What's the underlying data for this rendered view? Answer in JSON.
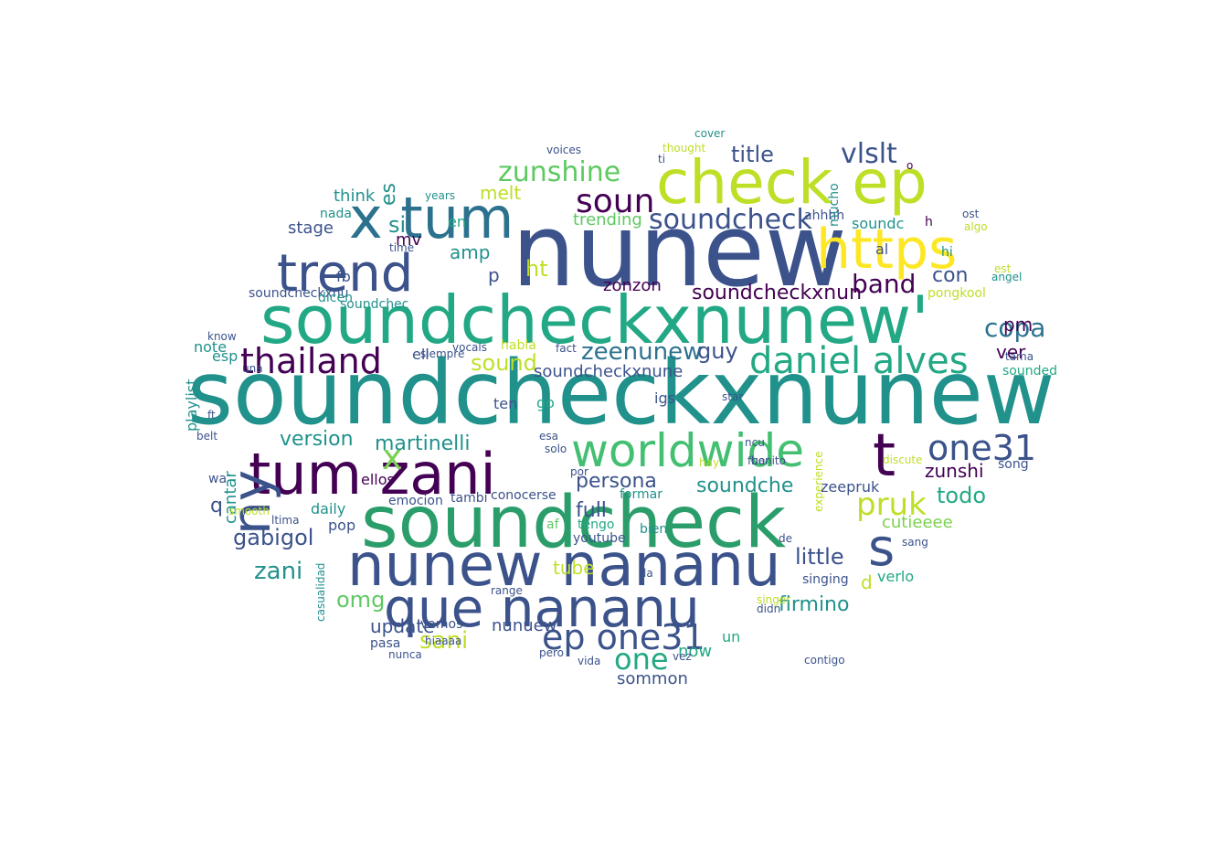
{
  "words": [
    {
      "text": "soundcheckxnunew",
      "color": "#21918c"
    },
    {
      "text": "soundcheckxnunew'",
      "color": "#22a884"
    },
    {
      "text": "nunew",
      "color": "#3b528b"
    },
    {
      "text": "soundcheck",
      "color": "#2a9d6a"
    },
    {
      "text": "tum zani",
      "color": "#440154"
    },
    {
      "text": "worldwide",
      "color": "#43bf71"
    },
    {
      "text": "check ep",
      "color": "#bddf26"
    },
    {
      "text": "https",
      "color": "#fde725"
    },
    {
      "text": "nunew nananu",
      "color": "#3b528b"
    },
    {
      "text": "que nananu",
      "color": "#3b528b"
    },
    {
      "text": "x tum",
      "color": "#2c728e"
    },
    {
      "text": "trend",
      "color": "#3b528b"
    },
    {
      "text": "thailand",
      "color": "#440154"
    },
    {
      "text": "daniel alves",
      "color": "#22a884"
    },
    {
      "text": "ep one31",
      "color": "#3b528b"
    },
    {
      "text": "one31",
      "color": "#3b528b"
    },
    {
      "text": "ny",
      "color": "#3b528b"
    },
    {
      "text": "t",
      "color": "#440154"
    },
    {
      "text": "s",
      "color": "#3b528b"
    },
    {
      "text": "x",
      "color": "#7ad151"
    },
    {
      "text": "soun",
      "color": "#440154"
    },
    {
      "text": "soundcheck",
      "color": "#3b528b"
    },
    {
      "text": "zunshine",
      "color": "#5ec962"
    },
    {
      "text": "vlslt",
      "color": "#3b528b"
    },
    {
      "text": "soundcheckxnun",
      "color": "#440154"
    },
    {
      "text": "pruk",
      "color": "#bddf26"
    },
    {
      "text": "band",
      "color": "#440154"
    },
    {
      "text": "title",
      "color": "#3b528b"
    },
    {
      "text": "zeenunew",
      "color": "#2c728e"
    },
    {
      "text": "copa",
      "color": "#2c728e"
    },
    {
      "text": "persona",
      "color": "#3b528b"
    },
    {
      "text": "soundche",
      "color": "#21918c"
    },
    {
      "text": "martinelli",
      "color": "#21918c"
    },
    {
      "text": "version",
      "color": "#21918c"
    },
    {
      "text": "gabigol",
      "color": "#3b528b"
    },
    {
      "text": "zani",
      "color": "#21918c"
    },
    {
      "text": "omg",
      "color": "#5ec962"
    },
    {
      "text": "sani",
      "color": "#bddf26"
    },
    {
      "text": "one",
      "color": "#22a884"
    },
    {
      "text": "firmino",
      "color": "#21918c"
    },
    {
      "text": "little",
      "color": "#3b528b"
    },
    {
      "text": "zunshi",
      "color": "#440154"
    },
    {
      "text": "todo",
      "color": "#22a884"
    },
    {
      "text": "amp",
      "color": "#21918c"
    },
    {
      "text": "si",
      "color": "#21918c"
    },
    {
      "text": "melt",
      "color": "#bddf26"
    },
    {
      "text": "ht",
      "color": "#bddf26"
    },
    {
      "text": "sound",
      "color": "#bddf26"
    },
    {
      "text": "trending",
      "color": "#5ec962"
    },
    {
      "text": "soundcheckxnune",
      "color": "#3b528b"
    },
    {
      "text": "zonzon",
      "color": "#440154"
    },
    {
      "text": "guy",
      "color": "#3b528b"
    },
    {
      "text": "ver",
      "color": "#440154"
    },
    {
      "text": "pm",
      "color": "#440154"
    },
    {
      "text": "con",
      "color": "#3b528b"
    },
    {
      "text": "full",
      "color": "#3b528b"
    },
    {
      "text": "cutieeee",
      "color": "#7ad151"
    },
    {
      "text": "tube",
      "color": "#bddf26"
    },
    {
      "text": "update",
      "color": "#3b528b"
    },
    {
      "text": "nunuew",
      "color": "#3b528b"
    },
    {
      "text": "now",
      "color": "#22a884"
    },
    {
      "text": "sommon",
      "color": "#3b528b"
    },
    {
      "text": "stage",
      "color": "#3b528b"
    },
    {
      "text": "think",
      "color": "#21918c"
    },
    {
      "text": "es",
      "color": "#21918c"
    },
    {
      "text": "mv",
      "color": "#440154"
    },
    {
      "text": "fb",
      "color": "#3b528b"
    },
    {
      "text": "cantar",
      "color": "#21918c"
    },
    {
      "text": "playlist",
      "color": "#21918c"
    },
    {
      "text": "esp",
      "color": "#21918c"
    },
    {
      "text": "note",
      "color": "#21918c"
    },
    {
      "text": "daily",
      "color": "#21918c"
    },
    {
      "text": "ellos",
      "color": "#440154"
    },
    {
      "text": "pop",
      "color": "#3b528b"
    },
    {
      "text": "emocion",
      "color": "#3b528b"
    },
    {
      "text": "tambi",
      "color": "#3b528b"
    },
    {
      "text": "conocerse",
      "color": "#3b528b"
    },
    {
      "text": "en",
      "color": "#22a884"
    },
    {
      "text": "verlo",
      "color": "#22a884"
    },
    {
      "text": "singing",
      "color": "#3b528b"
    },
    {
      "text": "zeepruk",
      "color": "#3b528b"
    },
    {
      "text": "song",
      "color": "#3b528b"
    },
    {
      "text": "sounded",
      "color": "#22a884"
    },
    {
      "text": "pongkool",
      "color": "#bddf26"
    },
    {
      "text": "soundcheckxnu",
      "color": "#3b528b"
    },
    {
      "text": "soundchec",
      "color": "#21918c"
    },
    {
      "text": "ahhhh",
      "color": "#3b528b"
    },
    {
      "text": "mucho",
      "color": "#21918c"
    },
    {
      "text": "soundc",
      "color": "#21918c"
    },
    {
      "text": "youtube",
      "color": "#3b528b"
    },
    {
      "text": "tengo",
      "color": "#22a884"
    },
    {
      "text": "bien",
      "color": "#21918c"
    },
    {
      "text": "formar",
      "color": "#21918c"
    },
    {
      "text": "igs",
      "color": "#3b528b"
    },
    {
      "text": "ten",
      "color": "#3b528b"
    },
    {
      "text": "go",
      "color": "#22a884"
    },
    {
      "text": "ell",
      "color": "#3b528b"
    },
    {
      "text": "un",
      "color": "#22a884"
    },
    {
      "text": "vamos",
      "color": "#3b528b"
    },
    {
      "text": "pasa",
      "color": "#3b528b"
    },
    {
      "text": "dicen",
      "color": "#21918c"
    },
    {
      "text": "nada",
      "color": "#21918c"
    },
    {
      "text": "years",
      "color": "#21918c"
    },
    {
      "text": "thought",
      "color": "#bddf26"
    },
    {
      "text": "cover",
      "color": "#21918c"
    },
    {
      "text": "al",
      "color": "#3b528b"
    },
    {
      "text": "hi",
      "color": "#21918c"
    },
    {
      "text": "ost",
      "color": "#3b528b"
    },
    {
      "text": "angel",
      "color": "#21918c"
    },
    {
      "text": "est",
      "color": "#bddf26"
    },
    {
      "text": "algo",
      "color": "#bddf26"
    },
    {
      "text": "hay",
      "color": "#bddf26"
    },
    {
      "text": "af",
      "color": "#5ec962"
    },
    {
      "text": "range",
      "color": "#3b528b"
    },
    {
      "text": "casualidad",
      "color": "#21918c"
    },
    {
      "text": "smooth",
      "color": "#bddf26"
    },
    {
      "text": "vocals",
      "color": "#3b528b"
    },
    {
      "text": "star",
      "color": "#3b528b"
    },
    {
      "text": "fact",
      "color": "#3b528b"
    },
    {
      "text": "siempre",
      "color": "#3b528b"
    },
    {
      "text": "hiaaaa",
      "color": "#3b528b"
    },
    {
      "text": "discute",
      "color": "#bddf26"
    },
    {
      "text": "vida",
      "color": "#3b528b"
    },
    {
      "text": "know",
      "color": "#3b528b"
    },
    {
      "text": "una",
      "color": "#3b528b"
    },
    {
      "text": "ncu",
      "color": "#3b528b"
    },
    {
      "text": "o",
      "color": "#440154"
    },
    {
      "text": "h",
      "color": "#440154"
    },
    {
      "text": "d",
      "color": "#bddf26"
    },
    {
      "text": "p",
      "color": "#3b528b"
    },
    {
      "text": "q",
      "color": "#3b528b"
    },
    {
      "text": "wa",
      "color": "#3b528b"
    },
    {
      "text": "sang",
      "color": "#3b528b"
    },
    {
      "text": "singer",
      "color": "#bddf26"
    },
    {
      "text": "experience",
      "color": "#bddf26"
    },
    {
      "text": "bonito",
      "color": "#3b528b"
    },
    {
      "text": "fue",
      "color": "#3b528b"
    },
    {
      "text": "ti",
      "color": "#3b528b"
    },
    {
      "text": "nunca",
      "color": "#3b528b"
    },
    {
      "text": "pero",
      "color": "#3b528b"
    },
    {
      "text": "didn",
      "color": "#3b528b"
    },
    {
      "text": "vez",
      "color": "#3b528b"
    },
    {
      "text": "time",
      "color": "#3b528b"
    },
    {
      "text": "habla",
      "color": "#bddf26"
    },
    {
      "text": "contigo",
      "color": "#3b528b"
    },
    {
      "text": "ltima",
      "color": "#3b528b"
    },
    {
      "text": "solo",
      "color": "#3b528b"
    },
    {
      "text": "esa",
      "color": "#3b528b"
    },
    {
      "text": "por",
      "color": "#3b528b"
    },
    {
      "text": "tama",
      "color": "#3b528b"
    },
    {
      "text": "belt",
      "color": "#3b528b"
    },
    {
      "text": "voices",
      "color": "#3b528b"
    },
    {
      "text": "la",
      "color": "#3b528b"
    },
    {
      "text": "de",
      "color": "#3b528b"
    },
    {
      "text": "ft",
      "color": "#3b528b"
    }
  ]
}
